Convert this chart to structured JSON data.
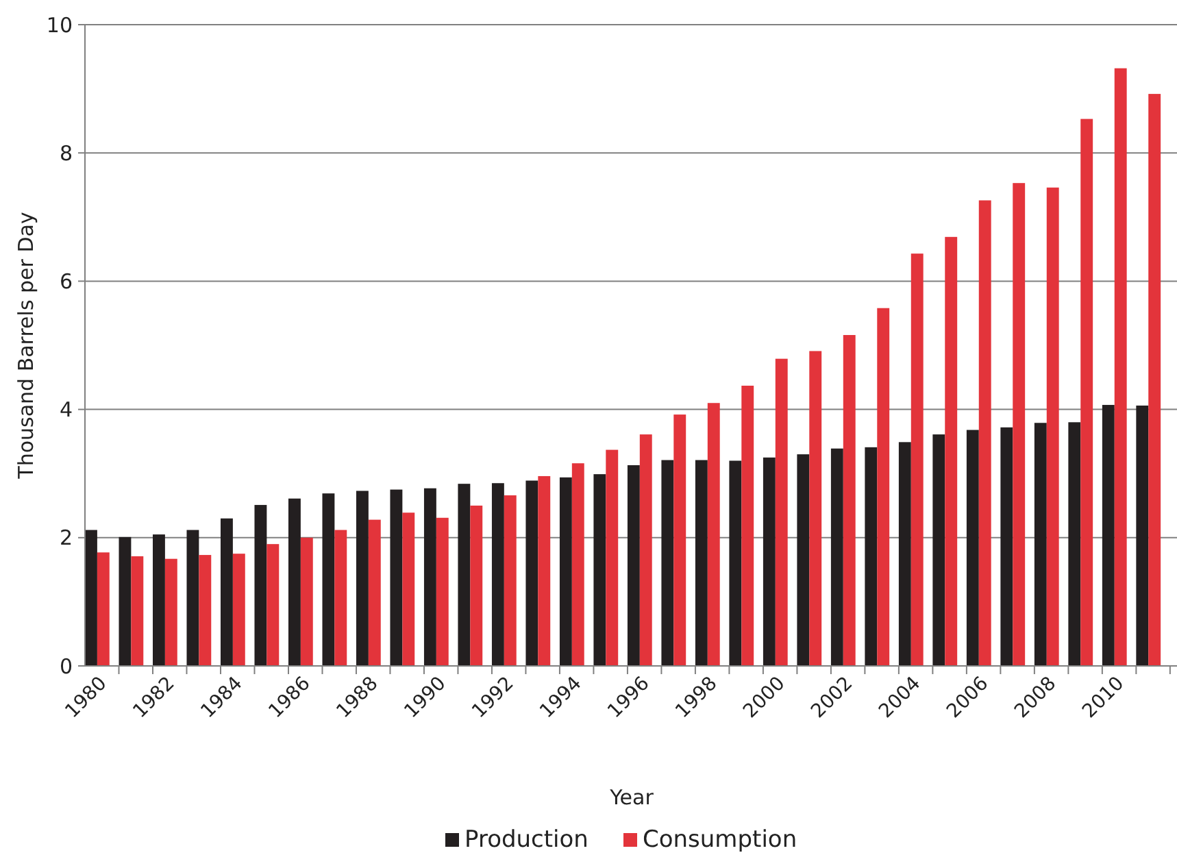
{
  "chart_data": {
    "type": "bar",
    "xlabel": "Year",
    "ylabel": "Thousand Barrels per Day",
    "categories": [
      "1980",
      null,
      "1982",
      null,
      "1984",
      null,
      "1986",
      null,
      "1988",
      null,
      "1990",
      null,
      "1992",
      null,
      "1994",
      null,
      "1996",
      null,
      "1998",
      null,
      "2000",
      null,
      "2002",
      null,
      "2004",
      null,
      "2006",
      null,
      "2008",
      null,
      "2010",
      null
    ],
    "series": [
      {
        "name": "Production",
        "color": "#231f20",
        "values": [
          2.12,
          2.01,
          2.05,
          2.12,
          2.3,
          2.51,
          2.61,
          2.69,
          2.73,
          2.75,
          2.77,
          2.84,
          2.85,
          2.89,
          2.94,
          2.99,
          3.13,
          3.21,
          3.21,
          3.2,
          3.25,
          3.3,
          3.39,
          3.41,
          3.49,
          3.61,
          3.68,
          3.72,
          3.79,
          3.8,
          4.07,
          4.06
        ]
      },
      {
        "name": "Consumption",
        "color": "#e3343b",
        "values": [
          1.77,
          1.71,
          1.67,
          1.73,
          1.75,
          1.9,
          2.0,
          2.12,
          2.28,
          2.39,
          2.31,
          2.5,
          2.66,
          2.96,
          3.16,
          3.37,
          3.61,
          3.92,
          4.1,
          4.37,
          4.79,
          4.91,
          5.16,
          5.58,
          6.43,
          6.69,
          7.26,
          7.53,
          7.46,
          8.53,
          9.32,
          8.92
        ]
      }
    ],
    "ylim": [
      0,
      10
    ],
    "yticks": [
      0,
      2,
      4,
      6,
      8,
      10
    ],
    "grid": "y",
    "legend": "bottom"
  }
}
